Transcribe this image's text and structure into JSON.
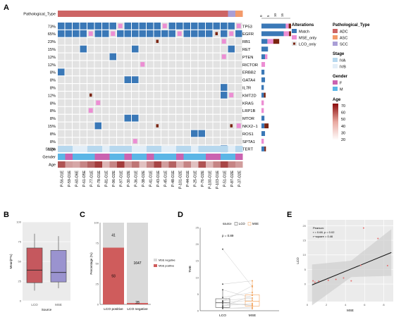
{
  "panels": {
    "a": "A",
    "b": "B",
    "c": "C",
    "d": "D",
    "e": "E"
  },
  "colors": {
    "match": "#3a78b7",
    "mse_only": "#ec8ed3",
    "lco_only": "#7a2410",
    "empty": "#e2e2e2",
    "adc": "#cd6464",
    "asc": "#f39a6a",
    "scc": "#a99ed6",
    "iva": "#b7d8ee",
    "ivb": "#e3eef7",
    "f": "#ca63b0",
    "m": "#5bb6e6",
    "age_lo": "#ffffff",
    "age_hi": "#8c0b0b",
    "box_lco": "#c5585e",
    "box_mse": "#9a93cf",
    "bar_neg": "#d9d9d9",
    "bar_pos": "#cf5c5c",
    "dot_lco": "#595959",
    "dot_mse": "#f3a25a",
    "reg": "#111111",
    "pt": "#e76f6f"
  },
  "oncoprint": {
    "top_label": "Pathological_Type",
    "genes": [
      "TP53",
      "EGFR",
      "RB1",
      "RET",
      "PTEN",
      "RICTOR",
      "ERBB2",
      "GATA4",
      "IL7R",
      "KMT2D",
      "KRAS",
      "LRP1B",
      "MTOR",
      "NKX2−1",
      "ROS1",
      "SPTA1",
      "TERT"
    ],
    "pcts": [
      "73%",
      "65%",
      "23%",
      "15%",
      "12%",
      "12%",
      "8%",
      "8%",
      "8%",
      "12%",
      "8%",
      "8%",
      "8%",
      "15%",
      "8%",
      "8%",
      "12%"
    ],
    "samples": [
      "P-56-O1E",
      "P-59-O1E",
      "P-60-O6E",
      "P-61-O5E",
      "P-77-O1E",
      "P-78-O1E",
      "P-81-O1E",
      "P-96-O2E",
      "P-97-O1E",
      "P-30-O2E",
      "P-36-O1E",
      "P-38-O2E",
      "P-41-O1E",
      "P-43-O1E",
      "P-45-O1E",
      "P-48-O1E",
      "P-101-O2E",
      "P-44-O1E",
      "P-25-O1E",
      "P-76-O2E",
      "P-100-O1E",
      "P-103-O1E",
      "P-51-O1E",
      "P-87-O2E",
      "P-37-O2E"
    ],
    "path_type": [
      "ADC",
      "ADC",
      "ADC",
      "ADC",
      "ADC",
      "ADC",
      "ADC",
      "ADC",
      "ADC",
      "ADC",
      "ADC",
      "ADC",
      "ADC",
      "ADC",
      "ADC",
      "ADC",
      "ADC",
      "ADC",
      "ADC",
      "ADC",
      "ADC",
      "ADC",
      "ADC",
      "SCC",
      "ASC"
    ],
    "matrix": [
      [
        "M",
        "M",
        "M",
        "M",
        "M",
        "M",
        "M",
        "M",
        "S",
        "M",
        "M",
        "M",
        "M",
        "M",
        "S",
        "M",
        "M",
        "M",
        "M",
        "M",
        "M",
        "M",
        "M",
        "M",
        "S"
      ],
      [
        "M",
        "M",
        "M",
        "M",
        "S",
        "M",
        "M",
        "S",
        "M",
        "M",
        "M",
        "M",
        "M",
        "M",
        "M",
        "M",
        "S",
        "M",
        "M",
        "M",
        "M",
        "L",
        "M",
        "S",
        "M"
      ],
      [
        "",
        "",
        "",
        "",
        "",
        "",
        "",
        "",
        "",
        "",
        "",
        "",
        "",
        "L",
        "",
        "",
        "",
        "",
        "",
        "",
        "",
        "",
        "S",
        "",
        ""
      ],
      [
        "",
        "",
        "",
        "M",
        "",
        "",
        "",
        "",
        "",
        "",
        "M",
        "",
        "",
        "",
        "",
        "",
        "",
        "",
        "",
        "",
        "",
        "",
        "",
        "M",
        ""
      ],
      [
        "",
        "",
        "",
        "",
        "",
        "",
        "",
        "M",
        "",
        "",
        "",
        "",
        "",
        "",
        "",
        "",
        "",
        "",
        "",
        "",
        "",
        "",
        "S",
        "",
        ""
      ],
      [
        "",
        "",
        "",
        "",
        "",
        "",
        "",
        "",
        "",
        "",
        "",
        "S",
        "",
        "",
        "",
        "",
        "",
        "",
        "",
        "",
        "",
        "",
        "",
        "",
        ""
      ],
      [
        "M",
        "",
        "",
        "",
        "",
        "",
        "",
        "",
        "",
        "",
        "",
        "",
        "",
        "",
        "",
        "",
        "",
        "",
        "",
        "",
        "",
        "",
        "",
        "",
        ""
      ],
      [
        "",
        "",
        "",
        "",
        "",
        "",
        "",
        "",
        "",
        "M",
        "M",
        "",
        "",
        "",
        "",
        "",
        "",
        "",
        "",
        "",
        "",
        "",
        "",
        "",
        ""
      ],
      [
        "",
        "",
        "",
        "",
        "",
        "",
        "",
        "",
        "",
        "",
        "",
        "",
        "",
        "",
        "",
        "",
        "",
        "",
        "",
        "",
        "",
        "",
        "M",
        "",
        ""
      ],
      [
        "",
        "",
        "",
        "",
        "L",
        "",
        "",
        "",
        "",
        "",
        "",
        "",
        "",
        "",
        "",
        "",
        "",
        "",
        "",
        "",
        "",
        "",
        "M",
        "S",
        ""
      ],
      [
        "",
        "",
        "",
        "",
        "",
        "S",
        "",
        "",
        "",
        "",
        "",
        "",
        "",
        "",
        "",
        "",
        "",
        "",
        "",
        "",
        "",
        "",
        "",
        "",
        ""
      ],
      [
        "",
        "",
        "",
        "",
        "S",
        "",
        "",
        "",
        "",
        "",
        "",
        "",
        "",
        "",
        "",
        "",
        "",
        "",
        "",
        "",
        "",
        "",
        "",
        "",
        ""
      ],
      [
        "",
        "",
        "",
        "",
        "",
        "",
        "",
        "",
        "",
        "M",
        "M",
        "",
        "",
        "",
        "",
        "",
        "",
        "",
        "",
        "",
        "",
        "",
        "",
        "",
        ""
      ],
      [
        "",
        "",
        "",
        "",
        "",
        "M",
        "",
        "",
        "",
        "",
        "",
        "",
        "",
        "L",
        "",
        "",
        "",
        "",
        "",
        "",
        "",
        "",
        "",
        "L",
        "S"
      ],
      [
        "",
        "",
        "",
        "",
        "",
        "",
        "",
        "",
        "",
        "",
        "",
        "",
        "",
        "",
        "",
        "",
        "",
        "",
        "M",
        "M",
        "",
        "",
        "",
        "",
        ""
      ],
      [
        "",
        "",
        "",
        "",
        "",
        "",
        "",
        "",
        "",
        "",
        "S",
        "",
        "",
        "",
        "",
        "",
        "",
        "",
        "",
        "",
        "",
        "",
        "",
        "",
        ""
      ],
      [
        "",
        "",
        "",
        "",
        "",
        "",
        "",
        "",
        "",
        "",
        "",
        "",
        "",
        "",
        "L",
        "",
        "",
        "",
        "",
        "",
        "",
        "",
        "M",
        "",
        ""
      ]
    ],
    "stage": [
      "IVA",
      "IVA",
      "IVB",
      "IVB",
      "IVA",
      "IVA",
      "IVB",
      "IVA",
      "IVA",
      "IVA",
      "IVB",
      "IVB",
      "IVA",
      "IVA",
      "IVB",
      "IVB",
      "IVA",
      "IVA",
      "IVB",
      "IVA",
      "IVA",
      "IVA",
      "IVA",
      "IVB",
      "IVA"
    ],
    "gender": [
      "M",
      "F",
      "M",
      "M",
      "M",
      "F",
      "F",
      "M",
      "M",
      "F",
      "M",
      "M",
      "F",
      "M",
      "M",
      "M",
      "F",
      "M",
      "M",
      "M",
      "F",
      "F",
      "M",
      "M",
      "F"
    ],
    "age": [
      55,
      40,
      38,
      45,
      52,
      60,
      35,
      45,
      60,
      40,
      48,
      33,
      45,
      58,
      40,
      52,
      35,
      45,
      33,
      55,
      35,
      45,
      58,
      45,
      40
    ],
    "side_tick_labels": [
      "0",
      "5",
      "10",
      "15"
    ],
    "side_bars": [
      [
        [
          0.82,
          "M"
        ],
        [
          0.1,
          "S"
        ],
        [
          0.08,
          "L"
        ]
      ],
      [
        [
          0.75,
          "M"
        ],
        [
          0.18,
          "S"
        ],
        [
          0.07,
          "L"
        ]
      ],
      [
        [
          0.2,
          "M"
        ],
        [
          0.2,
          "S"
        ],
        [
          0.2,
          "L"
        ]
      ],
      [
        [
          0.22,
          "M"
        ]
      ],
      [
        [
          0.12,
          "M"
        ],
        [
          0.08,
          "S"
        ]
      ],
      [
        [
          0.12,
          "S"
        ]
      ],
      [
        [
          0.1,
          "M"
        ]
      ],
      [
        [
          0.12,
          "M"
        ]
      ],
      [
        [
          0.08,
          "M"
        ]
      ],
      [
        [
          0.08,
          "M"
        ],
        [
          0.06,
          "L"
        ]
      ],
      [
        [
          0.08,
          "S"
        ]
      ],
      [
        [
          0.08,
          "S"
        ]
      ],
      [
        [
          0.1,
          "M"
        ]
      ],
      [
        [
          0.1,
          "M"
        ],
        [
          0.14,
          "L"
        ]
      ],
      [
        [
          0.12,
          "M"
        ]
      ],
      [
        [
          0.08,
          "S"
        ]
      ],
      [
        [
          0.1,
          "M"
        ],
        [
          0.05,
          "L"
        ]
      ]
    ],
    "track_labels": {
      "stage": "Stage",
      "gender": "Gender",
      "age": "Age"
    }
  },
  "legend": {
    "alterations": {
      "title": "Alterations",
      "items": [
        "Match",
        "MSE_only",
        "LCO_only"
      ]
    },
    "pathological": {
      "title": "Pathological_Type",
      "items": [
        "ADC",
        "ASC",
        "SCC"
      ]
    },
    "stage": {
      "title": "Stage",
      "items": [
        "IVA",
        "IVB"
      ]
    },
    "gender": {
      "title": "Gender",
      "items": [
        "F",
        "M"
      ]
    },
    "age": {
      "title": "Age",
      "ticks": [
        "70",
        "60",
        "50",
        "40",
        "30",
        "20"
      ]
    }
  },
  "chart_data": [
    {
      "type": "heatmap",
      "panel": "A",
      "title": "",
      "note": "Oncoprint of gene alterations across 25 samples (see oncoprint object)"
    },
    {
      "type": "box",
      "panel": "B",
      "xlabel": "Source",
      "ylabel": "Mean(F%)",
      "categories": [
        "LCO",
        "MSE"
      ],
      "ylim": [
        0,
        100
      ],
      "yticks": [
        "0",
        "25",
        "50",
        "75",
        "100"
      ],
      "series": [
        {
          "name": "LCO",
          "min": 13,
          "q1": 23,
          "median": 39,
          "q3": 67,
          "max": 85
        },
        {
          "name": "MSE",
          "min": 16,
          "q1": 24,
          "median": 36,
          "q3": 64,
          "max": 82
        }
      ]
    },
    {
      "type": "bar",
      "panel": "C",
      "ylabel": "Percentage (%)",
      "categories": [
        "LCO positive",
        "LCO negative"
      ],
      "ylim": [
        0,
        100
      ],
      "yticks": [
        "0",
        "25",
        "50",
        "75",
        "100"
      ],
      "series": [
        {
          "name": "MSE positive",
          "values": [
            69.4,
            1.7
          ],
          "labels": [
            "93",
            "28"
          ]
        },
        {
          "name": "MSE negative",
          "values": [
            30.6,
            98.3
          ],
          "labels": [
            "41",
            "1647"
          ]
        }
      ],
      "legend": [
        "MSE negative",
        "MSE positive"
      ]
    },
    {
      "type": "scatter",
      "panel": "D",
      "xlabel": "",
      "ylabel": "TMB",
      "categories": [
        "LCO",
        "MSE"
      ],
      "legend_title": "source",
      "legend": [
        "LCO",
        "MSE"
      ],
      "annotation": "p = 0.89",
      "ylim": [
        0,
        25
      ],
      "yticks": [
        "0",
        "5",
        "10",
        "15",
        "20",
        "25"
      ],
      "pairs": [
        [
          1.5,
          2.2
        ],
        [
          2.0,
          1.8
        ],
        [
          3.0,
          3.8
        ],
        [
          4.0,
          5.5
        ],
        [
          6.3,
          3.8
        ],
        [
          2.4,
          3.2
        ],
        [
          2.8,
          7.5
        ],
        [
          0.7,
          1.0
        ],
        [
          0.9,
          0.6
        ],
        [
          1.2,
          4.6
        ],
        [
          18.5,
          7.2
        ],
        [
          8.0,
          9.0
        ],
        [
          2.6,
          1.5
        ]
      ],
      "box_lco": {
        "q1": 1.0,
        "median": 2.4,
        "q3": 3.6,
        "min": 0.5,
        "max": 6.3
      },
      "box_mse": {
        "q1": 1.4,
        "median": 2.8,
        "q3": 4.8,
        "min": 0.5,
        "max": 9.0
      }
    },
    {
      "type": "scatter",
      "panel": "E",
      "xlabel": "MSE",
      "ylabel": "LCO",
      "xlim": [
        0,
        9
      ],
      "ylim": [
        -6,
        22
      ],
      "xticks": [
        "0",
        "2",
        "4",
        "6",
        "8"
      ],
      "yticks": [
        "0",
        "5",
        "10",
        "15",
        "20"
      ],
      "annotation": [
        "Pearson:",
        "r = 0.68, p = 0.02",
        "r−square = 0.46"
      ],
      "points": [
        [
          0.6,
          1.1
        ],
        [
          0.8,
          0.6
        ],
        [
          1.2,
          1.0
        ],
        [
          2.2,
          1.3
        ],
        [
          3.0,
          1.6
        ],
        [
          3.8,
          2.1
        ],
        [
          4.6,
          1.1
        ],
        [
          5.6,
          6.4
        ],
        [
          5.9,
          19.2
        ],
        [
          7.4,
          15.6
        ],
        [
          8.4,
          6.3
        ]
      ],
      "line": {
        "x": [
          0.5,
          8.8
        ],
        "y": [
          -0.3,
          10.8
        ]
      }
    }
  ]
}
